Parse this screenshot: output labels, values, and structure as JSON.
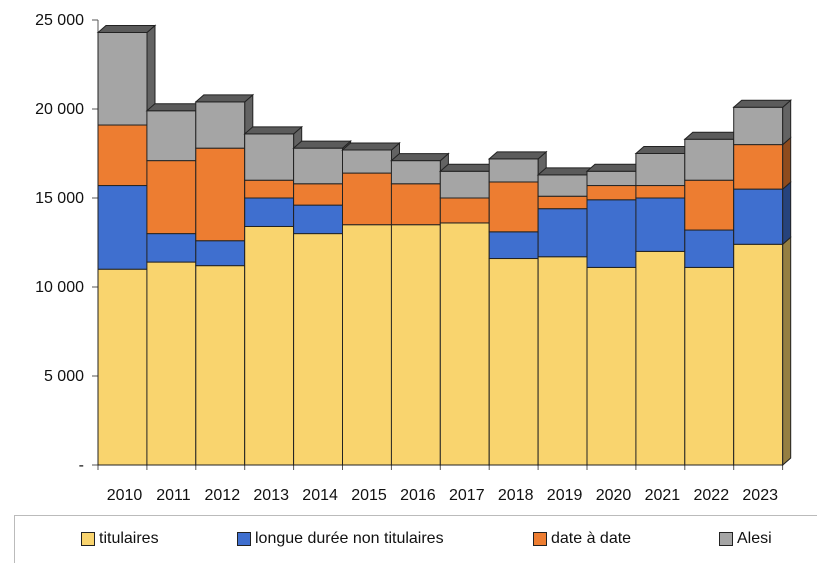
{
  "chart_data": {
    "type": "bar",
    "stacked": true,
    "three_d": true,
    "categories": [
      "2010",
      "2011",
      "2012",
      "2013",
      "2014",
      "2015",
      "2016",
      "2017",
      "2018",
      "2019",
      "2020",
      "2021",
      "2022",
      "2023"
    ],
    "series": [
      {
        "name": "titulaires",
        "color": "#F9D46E",
        "values": [
          11000,
          11400,
          11200,
          13400,
          13000,
          13500,
          13500,
          13600,
          11600,
          11700,
          11100,
          12000,
          11100,
          12400
        ]
      },
      {
        "name": "longue durée non titulaires",
        "color": "#3F6FCF",
        "values": [
          4700,
          1600,
          1400,
          1600,
          1600,
          0,
          0,
          0,
          1500,
          2700,
          3800,
          3000,
          2100,
          3100
        ]
      },
      {
        "name": "date à date",
        "color": "#ED7D31",
        "values": [
          3400,
          4100,
          5200,
          1000,
          1200,
          2900,
          2300,
          1400,
          2800,
          700,
          800,
          700,
          2800,
          2500
        ]
      },
      {
        "name": "Alesi",
        "color": "#A5A5A5",
        "values": [
          5200,
          2800,
          2600,
          2600,
          2000,
          1300,
          1300,
          1500,
          1300,
          1200,
          800,
          1800,
          2300,
          2100
        ]
      }
    ],
    "ylim": [
      0,
      25000
    ],
    "yticks": [
      0,
      5000,
      10000,
      15000,
      20000,
      25000
    ],
    "ytick_labels": [
      "-",
      "5 000",
      "10 000",
      "15 000",
      "20 000",
      "25 000"
    ],
    "legend_position": "bottom",
    "grid": false,
    "title": "",
    "xlabel": "",
    "ylabel": ""
  }
}
